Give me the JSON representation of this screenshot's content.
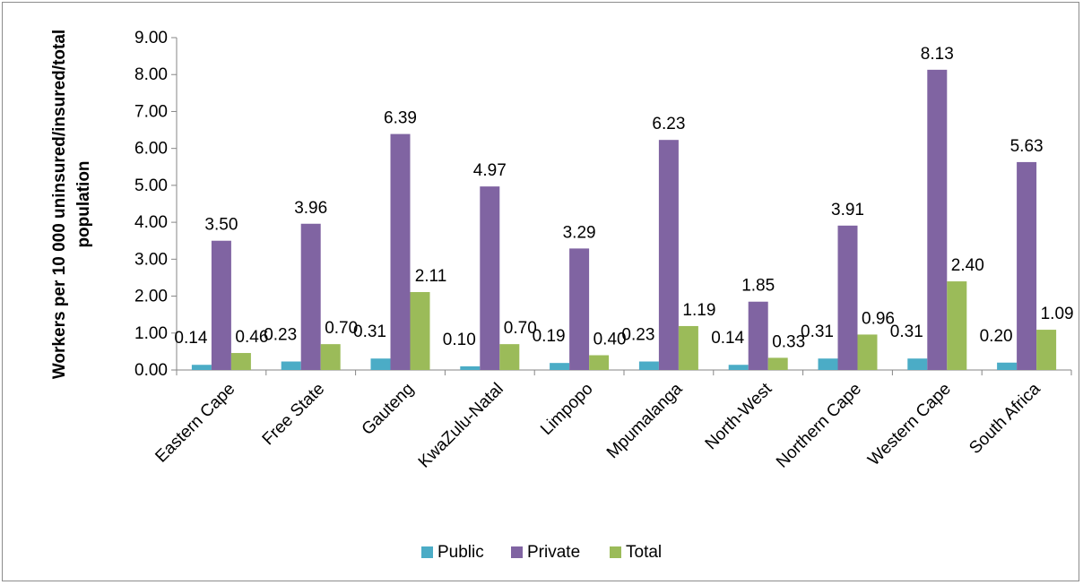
{
  "chart_data": {
    "type": "bar",
    "title": "",
    "xlabel": "",
    "ylabel": "Workers per 10 000 uninsured/insured/total population",
    "ylabel_lines": [
      "Workers per 10 000 uninsured/insured/total",
      "population"
    ],
    "ylim": [
      0,
      9
    ],
    "ytick_labels": [
      "0.00",
      "1.00",
      "2.00",
      "3.00",
      "4.00",
      "5.00",
      "6.00",
      "7.00",
      "8.00",
      "9.00"
    ],
    "grid": false,
    "legend_position": "bottom",
    "categories": [
      "Eastern Cape",
      "Free State",
      "Gauteng",
      "KwaZulu-Natal",
      "Limpopo",
      "Mpumalanga",
      "North-West",
      "Northern Cape",
      "Western Cape",
      "South Africa"
    ],
    "series": [
      {
        "name": "Public",
        "color": "#4bacc6",
        "values": [
          0.14,
          0.23,
          0.31,
          0.1,
          0.19,
          0.23,
          0.14,
          0.31,
          0.31,
          0.2
        ],
        "labels": [
          "0.14",
          "0.23",
          "0.31",
          "0.10",
          "0.19",
          "0.23",
          "0.14",
          "0.31",
          "0.31",
          "0.20"
        ]
      },
      {
        "name": "Private",
        "color": "#8064a2",
        "values": [
          3.5,
          3.96,
          6.39,
          4.97,
          3.29,
          6.23,
          1.85,
          3.91,
          8.13,
          5.63
        ],
        "labels": [
          "3.50",
          "3.96",
          "6.39",
          "4.97",
          "3.29",
          "6.23",
          "1.85",
          "3.91",
          "8.13",
          "5.63"
        ]
      },
      {
        "name": "Total",
        "color": "#9bbb59",
        "values": [
          0.46,
          0.7,
          2.11,
          0.7,
          0.4,
          1.19,
          0.33,
          0.96,
          2.4,
          1.09
        ],
        "labels": [
          "0.46",
          "0.70",
          "2.11",
          "0.70",
          "0.40",
          "1.19",
          "0.33",
          "0.96",
          "2.40",
          "1.09"
        ]
      }
    ]
  }
}
